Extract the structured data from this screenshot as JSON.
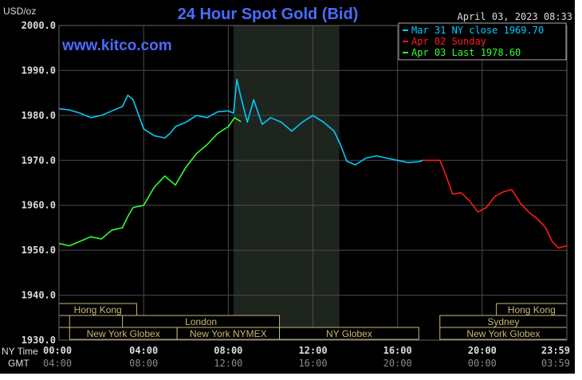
{
  "header": {
    "unit": "USD/oz",
    "title": "24 Hour Spot Gold (Bid)",
    "timestamp": "April 03, 2023 08:33",
    "site": "www.kitco.com"
  },
  "legend": [
    {
      "label": "Mar 31 NY close 1969.70",
      "color": "#00ccff"
    },
    {
      "label": "Apr 02 Sunday",
      "color": "#ff1a1a"
    },
    {
      "label": "Apr 03 Last 1978.60",
      "color": "#33ff33"
    }
  ],
  "colors": {
    "background": "#000000",
    "grid": "#4a4a4a",
    "highlight_band": "#1e241e",
    "axis_text": "#dddddd",
    "gmt_text": "#8a8a8a",
    "session_box": "#c9b878",
    "title": "#4a6cff",
    "site": "#4a6cff"
  },
  "axis_labels": {
    "ny_time": "NY Time",
    "gmt": "GMT"
  },
  "sessions": [
    {
      "label": "Hong Kong",
      "start": 0,
      "end": 3.67,
      "row": 1
    },
    {
      "label": "",
      "start": 0,
      "end": 0.5,
      "row": 2
    },
    {
      "label": "London",
      "start": 3.0,
      "end": 10.42,
      "row": 2
    },
    {
      "label": "New York Globex",
      "start": 0.5,
      "end": 5.58,
      "row": 3
    },
    {
      "label": "New York NYMEX",
      "start": 5.58,
      "end": 10.42,
      "row": 3
    },
    {
      "label": "NY Globex",
      "start": 10.42,
      "end": 17.0,
      "row": 3
    },
    {
      "label": "Hong Kong",
      "start": 20.67,
      "end": 24,
      "row": 1
    },
    {
      "label": "Sydney",
      "start": 18.0,
      "end": 24,
      "row": 2
    },
    {
      "label": "New York Globex",
      "start": 18.0,
      "end": 24,
      "row": 3
    }
  ],
  "chart_data": {
    "type": "line",
    "title": "24 Hour Spot Gold (Bid)",
    "ylabel": "USD/oz",
    "xlim": [
      0,
      24
    ],
    "ylim": [
      1930,
      2000
    ],
    "yticks": [
      1930,
      1940,
      1950,
      1960,
      1970,
      1980,
      1990,
      2000
    ],
    "ytick_labels": [
      "1930.0",
      "1940.0",
      "1950.0",
      "1960.0",
      "1970.0",
      "1980.0",
      "1990.0",
      "2000.0"
    ],
    "xticks": [
      0,
      4,
      8,
      12,
      16,
      20,
      24
    ],
    "xtick_labels": [
      "00:00",
      "04:00",
      "08:00",
      "12:00",
      "16:00",
      "20:00",
      "23:59"
    ],
    "gmt_tick_labels": [
      "04:00",
      "08:00",
      "12:00",
      "16:00",
      "20:00",
      "00:00",
      "03:59"
    ],
    "highlight_band": [
      8.25,
      13.25
    ],
    "grid": true,
    "legend_position": "top-right",
    "series": [
      {
        "name": "Mar 31 NY close 1969.70",
        "color": "#00ccff",
        "x": [
          0,
          0.5,
          1,
          1.5,
          2,
          2.5,
          3,
          3.25,
          3.5,
          4,
          4.5,
          5,
          5.25,
          5.5,
          6,
          6.5,
          7,
          7.5,
          8,
          8.25,
          8.4,
          8.6,
          8.9,
          9.2,
          9.6,
          10,
          10.5,
          11,
          11.5,
          12,
          12.5,
          13,
          13.3,
          13.6,
          14,
          14.5,
          15,
          15.5,
          16,
          16.5,
          17,
          17.2
        ],
        "values": [
          1981.5,
          1981.2,
          1980.5,
          1979.5,
          1980.0,
          1981.0,
          1982.0,
          1984.5,
          1983.5,
          1977.0,
          1975.5,
          1975.0,
          1976.0,
          1977.5,
          1978.5,
          1980.0,
          1979.5,
          1980.8,
          1981.0,
          1980.5,
          1988.0,
          1984.0,
          1978.5,
          1983.5,
          1978.0,
          1979.5,
          1978.5,
          1976.5,
          1978.5,
          1980.0,
          1978.5,
          1976.5,
          1973.5,
          1969.8,
          1969.0,
          1970.5,
          1971.0,
          1970.5,
          1970.0,
          1969.5,
          1969.7,
          1970.0
        ]
      },
      {
        "name": "Apr 02 Sunday",
        "color": "#ff1a1a",
        "x": [
          17.2,
          18.0,
          18.3,
          18.6,
          19.0,
          19.4,
          19.8,
          20.2,
          20.6,
          21.0,
          21.4,
          21.8,
          22.2,
          22.6,
          23.0,
          23.3,
          23.6,
          24.0
        ],
        "values": [
          1970.0,
          1970.0,
          1966.5,
          1962.5,
          1962.8,
          1961.0,
          1958.5,
          1959.5,
          1962.0,
          1963.0,
          1963.5,
          1960.5,
          1958.5,
          1957.0,
          1955.0,
          1952.0,
          1950.5,
          1951.0
        ]
      },
      {
        "name": "Apr 03 Last 1978.60",
        "color": "#33ff33",
        "x": [
          0,
          0.5,
          1,
          1.5,
          2,
          2.5,
          3,
          3.25,
          3.5,
          4,
          4.5,
          5,
          5.5,
          6,
          6.5,
          7,
          7.5,
          8,
          8.3,
          8.6
        ],
        "values": [
          1951.5,
          1951.0,
          1952.0,
          1953.0,
          1952.5,
          1954.5,
          1955.0,
          1957.5,
          1959.5,
          1960.0,
          1964.0,
          1966.5,
          1964.5,
          1968.5,
          1971.5,
          1973.5,
          1976.0,
          1977.5,
          1979.5,
          1978.6
        ]
      }
    ]
  }
}
